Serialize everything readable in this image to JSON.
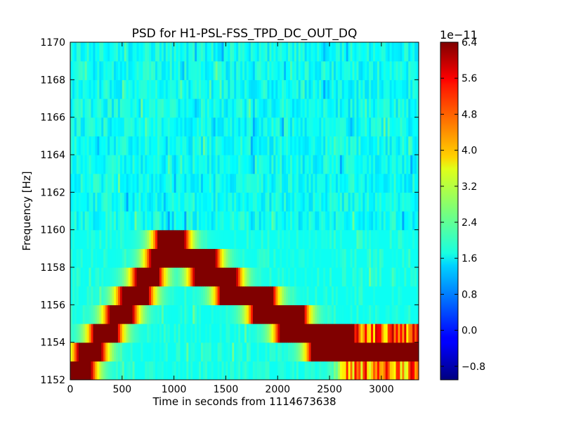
{
  "chart_data": {
    "type": "heatmap",
    "title": "PSD for H1-PSL-FSS_TPD_DC_OUT_DQ",
    "xlabel": "Time in seconds from 1114673638",
    "ylabel": "Frequency [Hz]",
    "xlim": [
      0,
      3360
    ],
    "ylim": [
      1152,
      1170
    ],
    "xticks": [
      0,
      500,
      1000,
      1500,
      2000,
      2500,
      3000
    ],
    "xtick_labels": [
      "0",
      "500",
      "1000",
      "1500",
      "2000",
      "2500",
      "3000"
    ],
    "yticks": [
      1152,
      1154,
      1156,
      1158,
      1160,
      1162,
      1164,
      1166,
      1168,
      1170
    ],
    "ytick_labels": [
      "1152",
      "1154",
      "1156",
      "1158",
      "1160",
      "1162",
      "1164",
      "1166",
      "1168",
      "1170"
    ],
    "colormap": "jet",
    "colorbar": {
      "min": -1.1,
      "max": 6.4,
      "exponent_label": "1e−11",
      "ticks": [
        -0.8,
        0.0,
        0.8,
        1.6,
        2.4,
        3.2,
        4.0,
        4.8,
        5.6,
        6.4
      ],
      "tick_labels": [
        "−0.8",
        "0.0",
        "0.8",
        "1.6",
        "2.4",
        "3.2",
        "4.0",
        "4.8",
        "5.6",
        "6.4"
      ]
    },
    "background_level": 1.8,
    "frequency_bin_hz": 1,
    "time_step_s": 20,
    "high_power_tracks": [
      {
        "t_start": 0,
        "t_end": 40,
        "f_low": 1152,
        "f_high": 1153,
        "level": 6.4
      },
      {
        "t_start": 40,
        "t_end": 200,
        "f_low": 1152,
        "f_high": 1153,
        "level": 6.4
      },
      {
        "t_start": 80,
        "t_end": 300,
        "f_low": 1153,
        "f_high": 1154,
        "level": 6.4
      },
      {
        "t_start": 230,
        "t_end": 450,
        "f_low": 1154,
        "f_high": 1155,
        "level": 6.4
      },
      {
        "t_start": 380,
        "t_end": 600,
        "f_low": 1155,
        "f_high": 1156,
        "level": 6.4
      },
      {
        "t_start": 500,
        "t_end": 750,
        "f_low": 1156,
        "f_high": 1157,
        "level": 6.4
      },
      {
        "t_start": 640,
        "t_end": 850,
        "f_low": 1157,
        "f_high": 1158,
        "level": 6.4
      },
      {
        "t_start": 780,
        "t_end": 1400,
        "f_low": 1158,
        "f_high": 1159,
        "level": 6.4
      },
      {
        "t_start": 850,
        "t_end": 1100,
        "f_low": 1159,
        "f_high": 1160,
        "level": 6.4
      },
      {
        "t_start": 1200,
        "t_end": 1600,
        "f_low": 1157,
        "f_high": 1158,
        "level": 6.4
      },
      {
        "t_start": 1450,
        "t_end": 1950,
        "f_low": 1156,
        "f_high": 1157,
        "level": 6.4
      },
      {
        "t_start": 1770,
        "t_end": 2250,
        "f_low": 1155,
        "f_high": 1156,
        "level": 6.4
      },
      {
        "t_start": 2020,
        "t_end": 2730,
        "f_low": 1154,
        "f_high": 1155,
        "level": 6.4
      },
      {
        "t_start": 2330,
        "t_end": 3360,
        "f_low": 1153,
        "f_high": 1154,
        "level": 6.4
      },
      {
        "t_start": 2640,
        "t_end": 3360,
        "f_low": 1152,
        "f_high": 1153,
        "level": 4.5
      },
      {
        "t_start": 2760,
        "t_end": 3360,
        "f_low": 1154,
        "f_high": 1155,
        "level": 4.8
      }
    ]
  }
}
